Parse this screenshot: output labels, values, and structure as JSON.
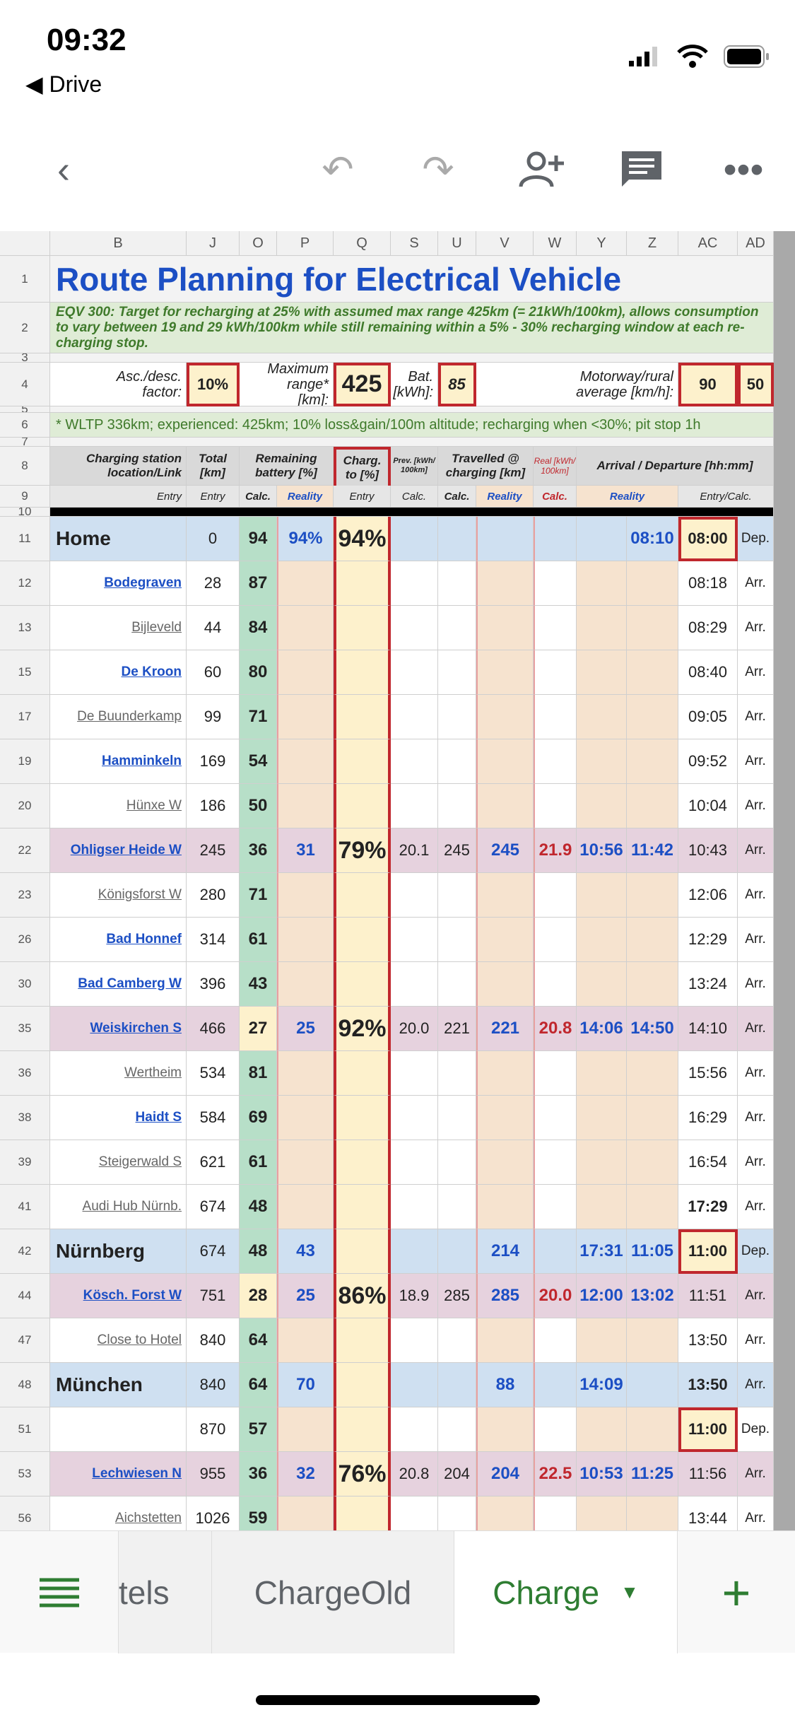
{
  "status": {
    "time": "09:32",
    "back_app": "◀ Drive"
  },
  "toolbar": {
    "icons": [
      "back-icon",
      "undo-icon",
      "redo-icon",
      "add-person-icon",
      "comment-icon",
      "more-icon"
    ]
  },
  "columns": [
    "B",
    "J",
    "O",
    "P",
    "Q",
    "S",
    "U",
    "V",
    "W",
    "Y",
    "Z",
    "AC",
    "AD"
  ],
  "title": "Route Planning for Electrical Vehicle",
  "note": "EQV 300: Target for recharging at 25% with assumed max range 425km (= 21kWh/100km), allows consumption to vary between 19 and 29 kWh/100km while still remaining within a 5% - 30% recharging window at each re-charging stop.",
  "params": {
    "asc_label": "Asc./desc. factor:",
    "asc": "10%",
    "range_label": "Maximum range* [km]:",
    "range": "425",
    "bat_label": "Bat. [kWh]:",
    "bat": "85",
    "speed_label": "Motorway/rural average [km/h]:",
    "motorway": "90",
    "rural": "50"
  },
  "footnote": "* WLTP 336km; experienced: 425km; 10% loss&gain/100m altitude; recharging when <30%; pit stop 1h",
  "headers": {
    "station": "Charging station location/Link",
    "total": "Total [km]",
    "remaining": "Remaining battery [%]",
    "charg": "Charg. to [%]",
    "prev": "Prev. [kWh/ 100km]",
    "travelled": "Travelled @ charging [km]",
    "real": "Real [kWh/ 100km]",
    "arrival": "Arrival / Departure [hh:mm]"
  },
  "subheaders": {
    "b": "Entry",
    "j": "Entry",
    "o": "Calc.",
    "p": "Reality",
    "q": "Entry",
    "s": "Calc.",
    "u": "Calc.",
    "v": "Reality",
    "w": "Calc.",
    "yz": "Reality",
    "ac": "Entry/Calc."
  },
  "rows": [
    {
      "n": "11",
      "name": "Home",
      "style": "home",
      "total": "0",
      "rem": "94",
      "p": "94%",
      "q": "94%",
      "s": "",
      "u": "",
      "v": "",
      "w": "",
      "y": "",
      "z": "08:10",
      "ac": "08:00",
      "ad": "Dep.",
      "acbox": true
    },
    {
      "n": "12",
      "name": "Bodegraven",
      "style": "link-blue",
      "total": "28",
      "rem": "87",
      "ac": "08:18",
      "ad": "Arr."
    },
    {
      "n": "13",
      "name": "Bijleveld",
      "style": "link-gray",
      "total": "44",
      "rem": "84",
      "ac": "08:29",
      "ad": "Arr."
    },
    {
      "n": "15",
      "name": "De Kroon",
      "style": "link-blue",
      "total": "60",
      "rem": "80",
      "ac": "08:40",
      "ad": "Arr."
    },
    {
      "n": "17",
      "name": "De Buunderkamp",
      "style": "link-gray",
      "total": "99",
      "rem": "71",
      "ac": "09:05",
      "ad": "Arr."
    },
    {
      "n": "19",
      "name": "Hamminkeln",
      "style": "link-blue",
      "total": "169",
      "rem": "54",
      "ac": "09:52",
      "ad": "Arr."
    },
    {
      "n": "20",
      "name": "Hünxe W",
      "style": "link-gray",
      "total": "186",
      "rem": "50",
      "ac": "10:04",
      "ad": "Arr."
    },
    {
      "n": "22",
      "name": "Ohligser Heide W",
      "style": "charge",
      "total": "245",
      "rem": "36",
      "p": "31",
      "q": "79%",
      "s": "20.1",
      "u": "245",
      "v": "245",
      "w": "21.9",
      "y": "10:56",
      "z": "11:42",
      "ac": "10:43",
      "ad": "Arr."
    },
    {
      "n": "23",
      "name": "Königsforst W",
      "style": "link-gray",
      "total": "280",
      "rem": "71",
      "ac": "12:06",
      "ad": "Arr."
    },
    {
      "n": "26",
      "name": "Bad Honnef",
      "style": "link-blue",
      "total": "314",
      "rem": "61",
      "ac": "12:29",
      "ad": "Arr."
    },
    {
      "n": "30",
      "name": "Bad Camberg W",
      "style": "link-blue",
      "total": "396",
      "rem": "43",
      "ac": "13:24",
      "ad": "Arr."
    },
    {
      "n": "35",
      "name": "Weiskirchen S",
      "style": "charge",
      "total": "466",
      "rem": "27",
      "remlow": true,
      "p": "25",
      "q": "92%",
      "s": "20.0",
      "u": "221",
      "v": "221",
      "w": "20.8",
      "y": "14:06",
      "z": "14:50",
      "ac": "14:10",
      "ad": "Arr."
    },
    {
      "n": "36",
      "name": "Wertheim",
      "style": "link-gray",
      "total": "534",
      "rem": "81",
      "ac": "15:56",
      "ad": "Arr."
    },
    {
      "n": "38",
      "name": "Haidt S",
      "style": "link-blue",
      "total": "584",
      "rem": "69",
      "ac": "16:29",
      "ad": "Arr."
    },
    {
      "n": "39",
      "name": "Steigerwald S",
      "style": "link-gray",
      "total": "621",
      "rem": "61",
      "ac": "16:54",
      "ad": "Arr."
    },
    {
      "n": "41",
      "name": "Audi Hub Nürnb.",
      "style": "link-gray",
      "total": "674",
      "rem": "48",
      "ac": "17:29",
      "acbold": true,
      "ad": "Arr."
    },
    {
      "n": "42",
      "name": "Nürnberg",
      "style": "home",
      "total": "674",
      "rem": "48",
      "p": "43",
      "v": "214",
      "y": "17:31",
      "z": "11:05",
      "ac": "11:00",
      "acbox": true,
      "ad": "Dep."
    },
    {
      "n": "44",
      "name": "Kösch. Forst W",
      "style": "charge",
      "total": "751",
      "rem": "28",
      "remlow": true,
      "p": "25",
      "q": "86%",
      "s": "18.9",
      "u": "285",
      "v": "285",
      "w": "20.0",
      "y": "12:00",
      "z": "13:02",
      "ac": "11:51",
      "ad": "Arr."
    },
    {
      "n": "47",
      "name": "Close to Hotel",
      "style": "link-gray",
      "total": "840",
      "rem": "64",
      "ac": "13:50",
      "ad": "Arr."
    },
    {
      "n": "48",
      "name": "München",
      "style": "home",
      "total": "840",
      "rem": "64",
      "p": "70",
      "v": "88",
      "y": "14:09",
      "ac": "13:50",
      "acbold": true,
      "ad": "Arr."
    },
    {
      "n": "51",
      "name": "",
      "style": "plain",
      "total": "870",
      "rem": "57",
      "ac": "11:00",
      "acbox": true,
      "ad": "Dep."
    },
    {
      "n": "53",
      "name": "Lechwiesen N",
      "style": "charge",
      "total": "955",
      "rem": "36",
      "p": "32",
      "q": "76%",
      "s": "20.8",
      "u": "204",
      "v": "204",
      "w": "22.5",
      "y": "10:53",
      "z": "11:25",
      "ac": "11:56",
      "ad": "Arr."
    },
    {
      "n": "56",
      "name": "Aichstetten",
      "style": "link-gray",
      "total": "1026",
      "rem": "59",
      "ac": "13:44",
      "ad": "Arr."
    }
  ],
  "tabs": {
    "menu_icon": "sheet-list-icon",
    "t1": "tels",
    "t2": "ChargeOld",
    "t3": "Charge",
    "add": "+"
  },
  "colors": {
    "title": "#1c4fc4",
    "accent_green": "#2e7d32",
    "red_box": "#c0272d",
    "home_row": "#cfe0f1",
    "charge_row": "#e6d2de",
    "calc_green": "#b7dfc8",
    "reality_bg": "#f6e3cf",
    "charge_col": "#fdf1cc"
  }
}
